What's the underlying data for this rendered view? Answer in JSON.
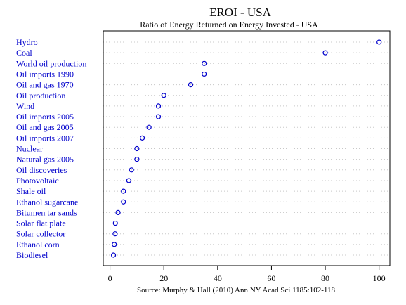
{
  "chart_data": {
    "type": "scatter",
    "title": "EROI - USA",
    "subtitle": "Ratio of Energy Returned on Energy Invested - USA",
    "source": "Source: Murphy & Hall (2010) Ann NY Acad Sci 1185:102-118",
    "xlabel": "",
    "ylabel": "",
    "xlim": [
      -2.5,
      104
    ],
    "xticks": [
      0,
      20,
      40,
      60,
      80,
      100
    ],
    "grid": "horizontal-dotted",
    "categories": [
      "Hydro",
      "Coal",
      "World oil production",
      "Oil imports 1990",
      "Oil and gas 1970",
      "Oil production",
      "Wind",
      "Oil imports 2005",
      "Oil and gas 2005",
      "Oil imports 2007",
      "Nuclear",
      "Natural gas 2005",
      "Oil discoveries",
      "Photovoltaic",
      "Shale oil",
      "Ethanol sugarcane",
      "Bitumen tar sands",
      "Solar flat plate",
      "Solar collector",
      "Ethanol corn",
      "Biodiesel"
    ],
    "values": [
      100,
      80,
      35,
      35,
      30,
      20,
      18,
      18,
      14.5,
      12,
      10,
      10,
      8,
      7,
      5,
      5,
      3,
      2,
      1.9,
      1.6,
      1.3
    ],
    "colors": {
      "marker": "#0000cc",
      "label": "#0000cc",
      "grid": "#c8c8c8",
      "axis": "#000000"
    }
  }
}
